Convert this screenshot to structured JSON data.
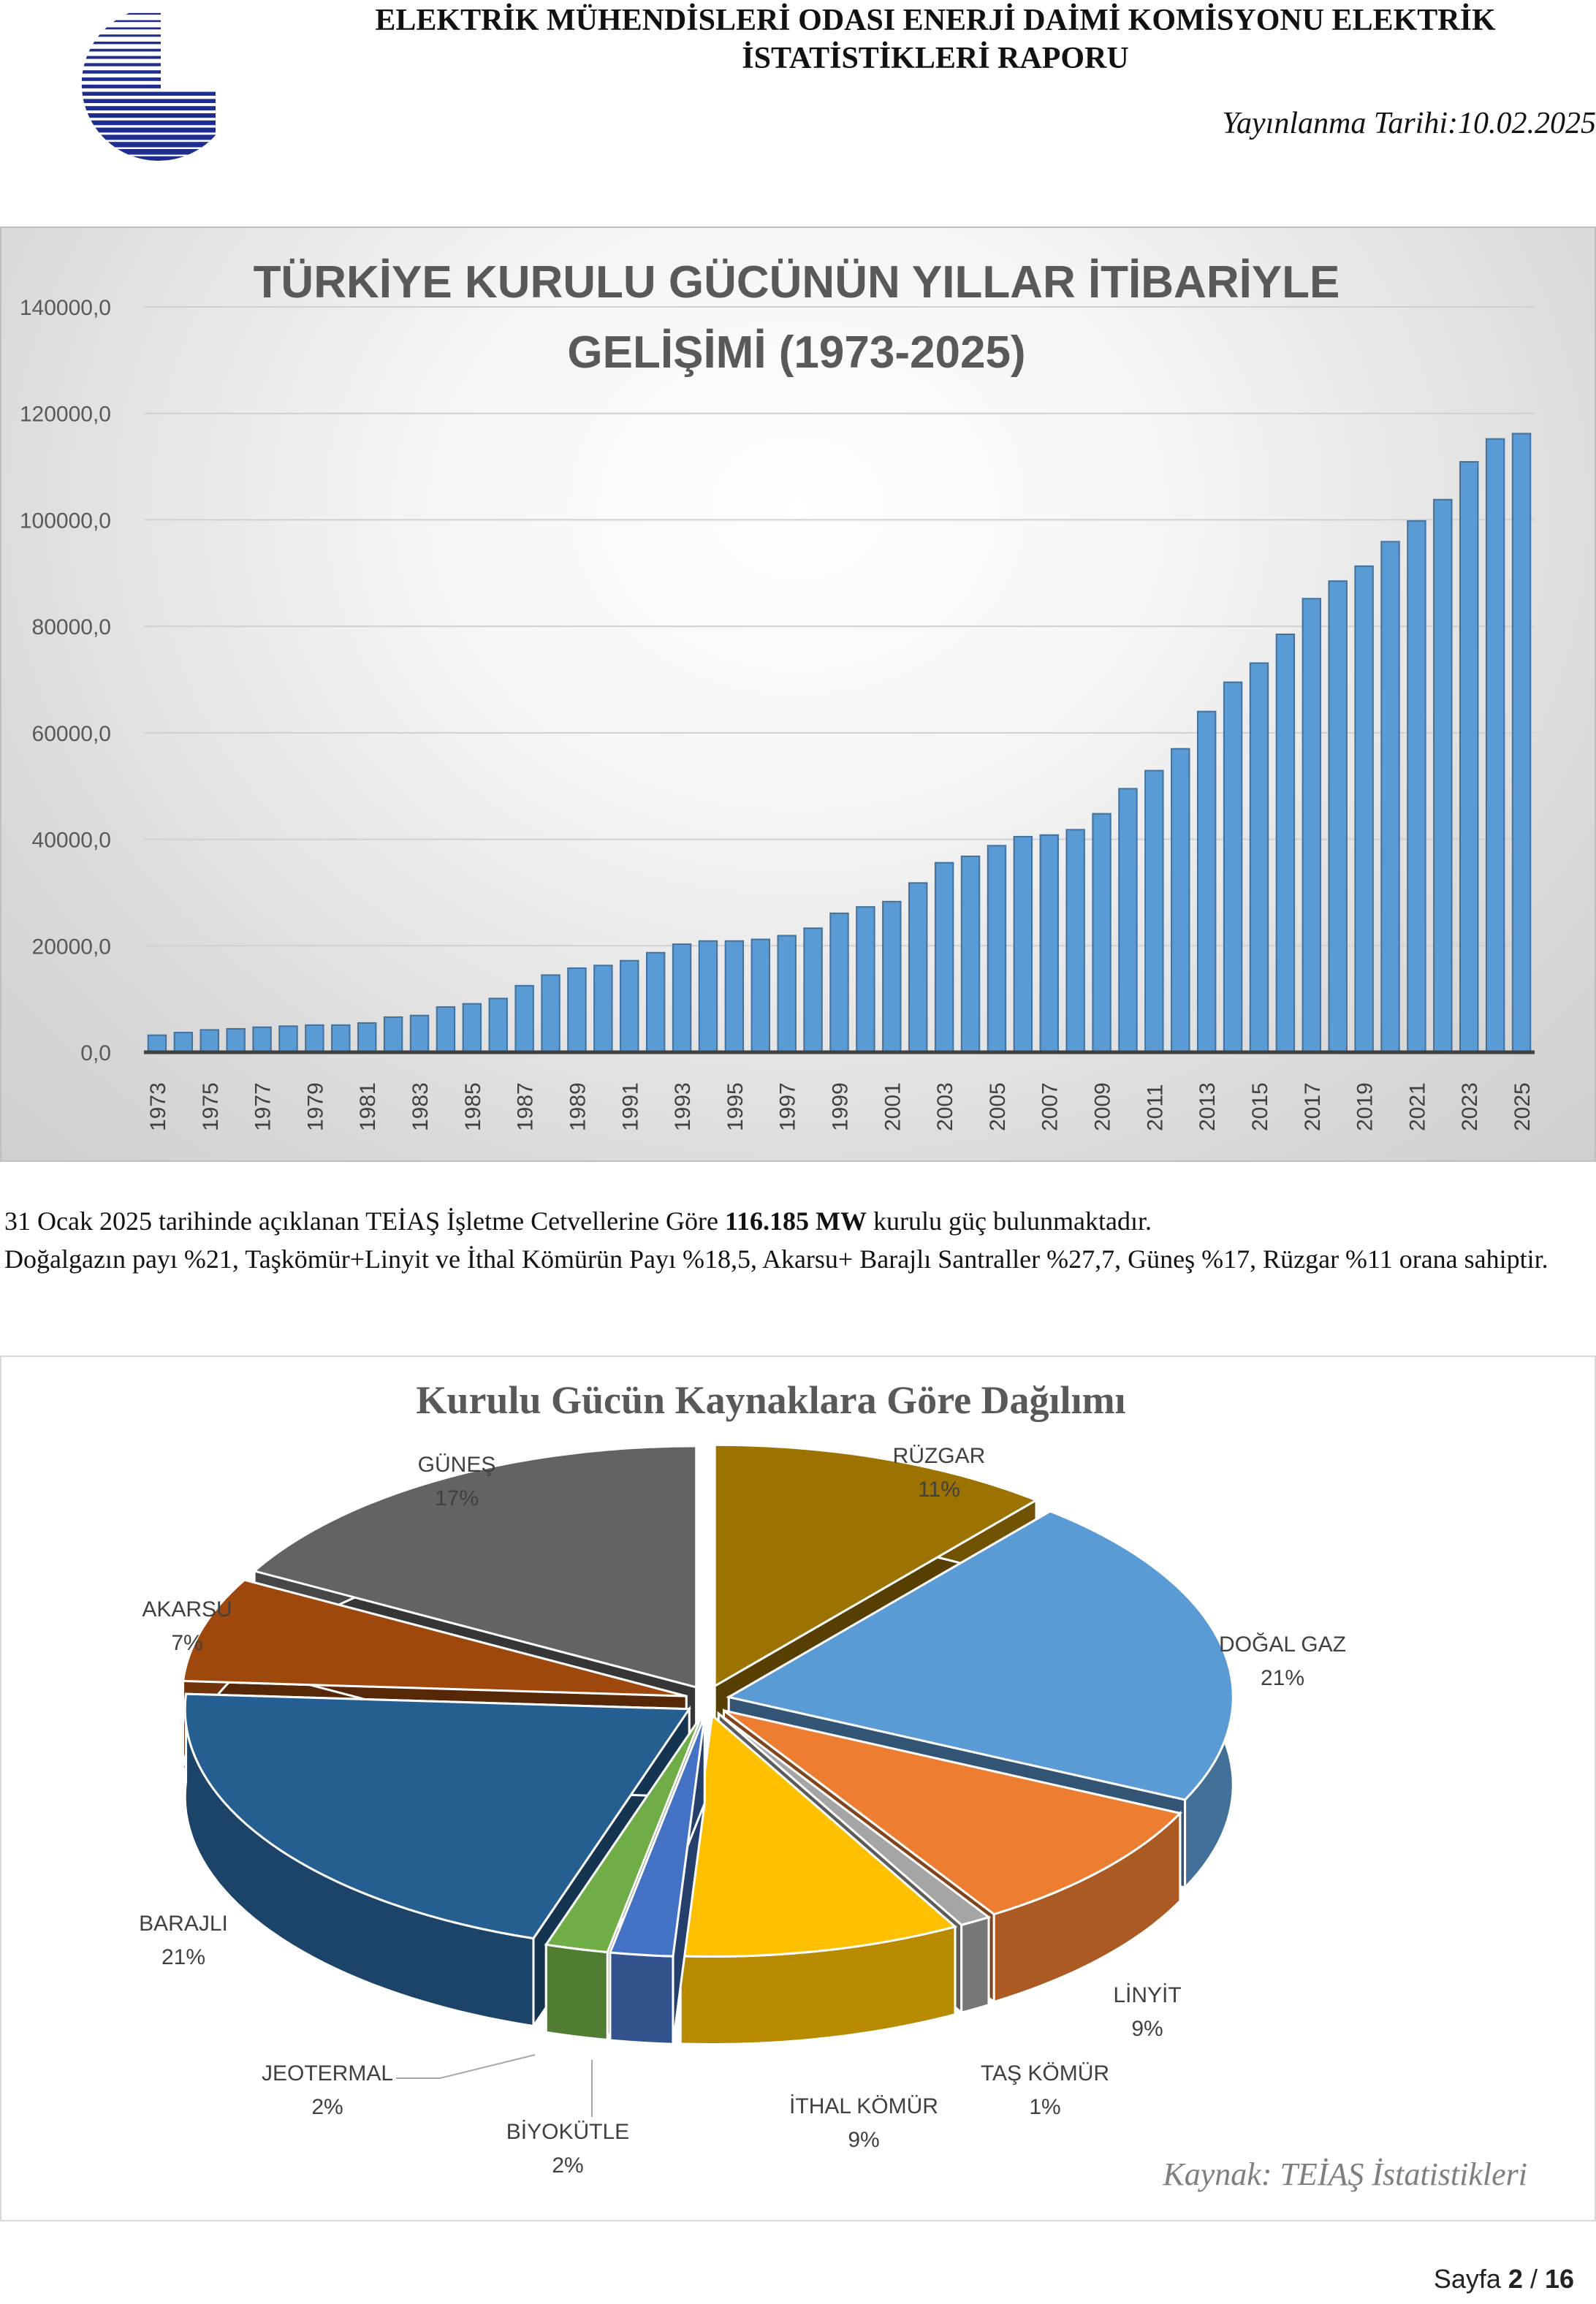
{
  "header": {
    "title_line1": "ELEKTRİK MÜHENDİSLERİ ODASI ENERJİ DAİMİ KOMİSYONU ELEKTRİK",
    "title_line2": "İSTATİSTİKLERİ RAPORU",
    "date": "Yayınlanma Tarihi:10.02.2025",
    "logo_color": "#1f2d8c"
  },
  "paragraph": {
    "line1_pre": "31 Ocak 2025 tarihinde açıklanan TEİAŞ İşletme Cetvellerine Göre ",
    "line1_bold": "116.185 MW",
    "line1_post": " kurulu güç bulunmaktadır.",
    "line2": "Doğalgazın payı %21, Taşkömür+Linyit ve İthal Kömürün Payı %18,5, Akarsu+ Barajlı Santraller %27,7, Güneş %17, Rüzgar %11 orana sahiptir."
  },
  "chart_data": [
    {
      "type": "bar",
      "title_line1": "TÜRKİYE KURULU GÜCÜNÜN YILLAR İTİBARİYLE",
      "title_line2": "GELİŞİMİ (1973-2025)",
      "xlabel": "",
      "ylabel": "",
      "ylim": [
        0,
        140000
      ],
      "yticks": [
        "0,0",
        "20000,0",
        "40000,0",
        "60000,0",
        "80000,0",
        "100000,0",
        "120000,0",
        "140000,0"
      ],
      "grid": true,
      "bar_color": "#5b9bd5",
      "categories": [
        "1973",
        "1974",
        "1975",
        "1976",
        "1977",
        "1978",
        "1979",
        "1980",
        "1981",
        "1982",
        "1983",
        "1984",
        "1985",
        "1986",
        "1987",
        "1988",
        "1989",
        "1990",
        "1991",
        "1992",
        "1993",
        "1994",
        "1995",
        "1996",
        "1997",
        "1998",
        "1999",
        "2000",
        "2001",
        "2002",
        "2003",
        "2004",
        "2005",
        "2006",
        "2007",
        "2008",
        "2009",
        "2010",
        "2011",
        "2012",
        "2013",
        "2014",
        "2015",
        "2016",
        "2017",
        "2018",
        "2019",
        "2020",
        "2021",
        "2022",
        "2023",
        "2024",
        "2025"
      ],
      "tick_labels": [
        "1973",
        "1975",
        "1977",
        "1979",
        "1981",
        "1983",
        "1985",
        "1987",
        "1989",
        "1991",
        "1993",
        "1995",
        "1997",
        "1999",
        "2001",
        "2003",
        "2005",
        "2007",
        "2009",
        "2011",
        "2013",
        "2015",
        "2017",
        "2019",
        "2021",
        "2023",
        "2025"
      ],
      "values": [
        3200,
        3700,
        4200,
        4400,
        4700,
        4900,
        5100,
        5100,
        5500,
        6600,
        6900,
        8500,
        9100,
        10100,
        12500,
        14500,
        15800,
        16300,
        17200,
        18700,
        20300,
        20900,
        20900,
        21200,
        21900,
        23300,
        26100,
        27300,
        28300,
        31800,
        35600,
        36800,
        38800,
        40500,
        40800,
        41800,
        44800,
        49500,
        52900,
        57000,
        64000,
        69500,
        73100,
        78500,
        85200,
        88500,
        91300,
        95900,
        99800,
        103800,
        110900,
        115200,
        116200
      ]
    },
    {
      "type": "pie",
      "title": "Kurulu Gücün Kaynaklara Göre Dağılımı",
      "source": "Kaynak: TEİAŞ İstatistikleri",
      "slices": [
        {
          "name": "RÜZGAR",
          "pct": 11,
          "label": "11%",
          "color": "#9c7200"
        },
        {
          "name": "DOĞAL GAZ",
          "pct": 21,
          "label": "21%",
          "color": "#5b9bd5"
        },
        {
          "name": "LİNYİT",
          "pct": 9,
          "label": "9%",
          "color": "#ed7d31"
        },
        {
          "name": "TAŞ KÖMÜR",
          "pct": 1,
          "label": "1%",
          "color": "#a5a5a5"
        },
        {
          "name": "İTHAL KÖMÜR",
          "pct": 9,
          "label": "9%",
          "color": "#ffc000"
        },
        {
          "name": "BİYOKÜTLE",
          "pct": 2,
          "label": "2%",
          "color": "#4472c4"
        },
        {
          "name": "JEOTERMAL",
          "pct": 2,
          "label": "2%",
          "color": "#70ad47"
        },
        {
          "name": "BARAJLI",
          "pct": 21,
          "label": "21%",
          "color": "#255e91"
        },
        {
          "name": "AKARSU",
          "pct": 7,
          "label": "7%",
          "color": "#9e480e"
        },
        {
          "name": "GÜNEŞ",
          "pct": 17,
          "label": "17%",
          "color": "#636363"
        }
      ]
    }
  ],
  "footer": {
    "page_label": "Sayfa ",
    "page_current": "2",
    "page_sep": " / ",
    "page_total": "16"
  }
}
